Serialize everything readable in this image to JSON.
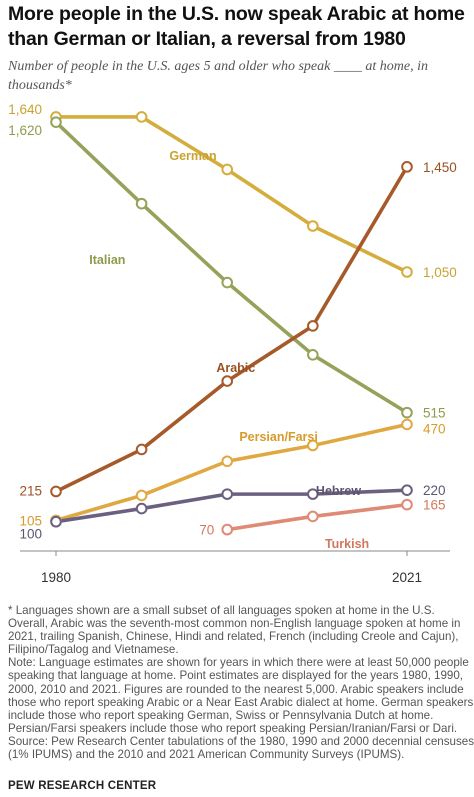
{
  "header": {
    "title": "More people in the U.S. now speak Arabic at home than German or Italian, a reversal from 1980",
    "subtitle": "Number of people in the U.S. ages 5 and older who speak ____ at home, in thousands*"
  },
  "chart_data": {
    "type": "line",
    "title": "More people in the U.S. now speak Arabic at home than German or Italian, a reversal from 1980",
    "subtitle": "Number of people in the U.S. ages 5 and older who speak ____ at home, in thousands*",
    "x": [
      1980,
      1990,
      2000,
      2010,
      2021
    ],
    "x_tick_labels": [
      "1980",
      "2021"
    ],
    "ylim": [
      0,
      1750
    ],
    "grid": false,
    "legend": "direct labels",
    "series": [
      {
        "name": "German",
        "color": "#d4ad3c",
        "label_color": "#c9a231",
        "values": [
          1640,
          1640,
          1440,
          1225,
          1050
        ],
        "labels": [
          "1,640",
          "",
          "",
          "",
          "1,050"
        ]
      },
      {
        "name": "Italian",
        "color": "#96a25a",
        "label_color": "#8f9a4c",
        "values": [
          1620,
          1310,
          1010,
          735,
          515
        ],
        "labels": [
          "1,620",
          "",
          "",
          "",
          "515"
        ]
      },
      {
        "name": "Arabic",
        "color": "#a65a2a",
        "label_color": "#9a5224",
        "values": [
          215,
          375,
          635,
          845,
          1450
        ],
        "labels": [
          "215",
          "",
          "",
          "",
          "1,450"
        ]
      },
      {
        "name": "Persian/Farsi",
        "color": "#e0a840",
        "label_color": "#d99a2b",
        "values": [
          105,
          200,
          330,
          390,
          470
        ],
        "labels": [
          "105",
          "",
          "",
          "",
          "470"
        ]
      },
      {
        "name": "Hebrew",
        "color": "#6b6080",
        "label_color": "#5d5472",
        "values": [
          100,
          150,
          205,
          205,
          220
        ],
        "labels": [
          "100",
          "",
          "",
          "",
          "220"
        ]
      },
      {
        "name": "Turkish",
        "color": "#de8a75",
        "label_color": "#d4775f",
        "values": [
          null,
          null,
          70,
          120,
          165
        ],
        "labels": [
          "",
          "",
          "70",
          "",
          "165"
        ]
      }
    ]
  },
  "footnotes": {
    "languages": "* Languages shown are a small subset of all languages spoken at home in the U.S. Overall, Arabic was the seventh-most common non-English language spoken at home in 2021, trailing Spanish, Chinese, Hindi and related, French (including Creole and Cajun), Filipino/Tagalog and Vietnamese.",
    "note": "Note: Language estimates are shown for years in which there were at least 50,000 people speaking that language at home. Point estimates are displayed for the years 1980, 1990, 2000, 2010 and 2021. Figures are rounded to the nearest 5,000. Arabic speakers include those who report speaking Arabic or a Near East Arabic dialect at home. German speakers include those who report speaking German, Swiss or Pennsylvania Dutch at home. Persian/Farsi speakers include those who report speaking Persian/Iranian/Farsi or Dari.",
    "source": "Source: Pew Research Center tabulations of the 1980, 1990 and 2000 decennial censuses (1% IPUMS) and the 2010 and 2021 American Community Surveys (IPUMS)."
  },
  "brand": "PEW RESEARCH CENTER"
}
